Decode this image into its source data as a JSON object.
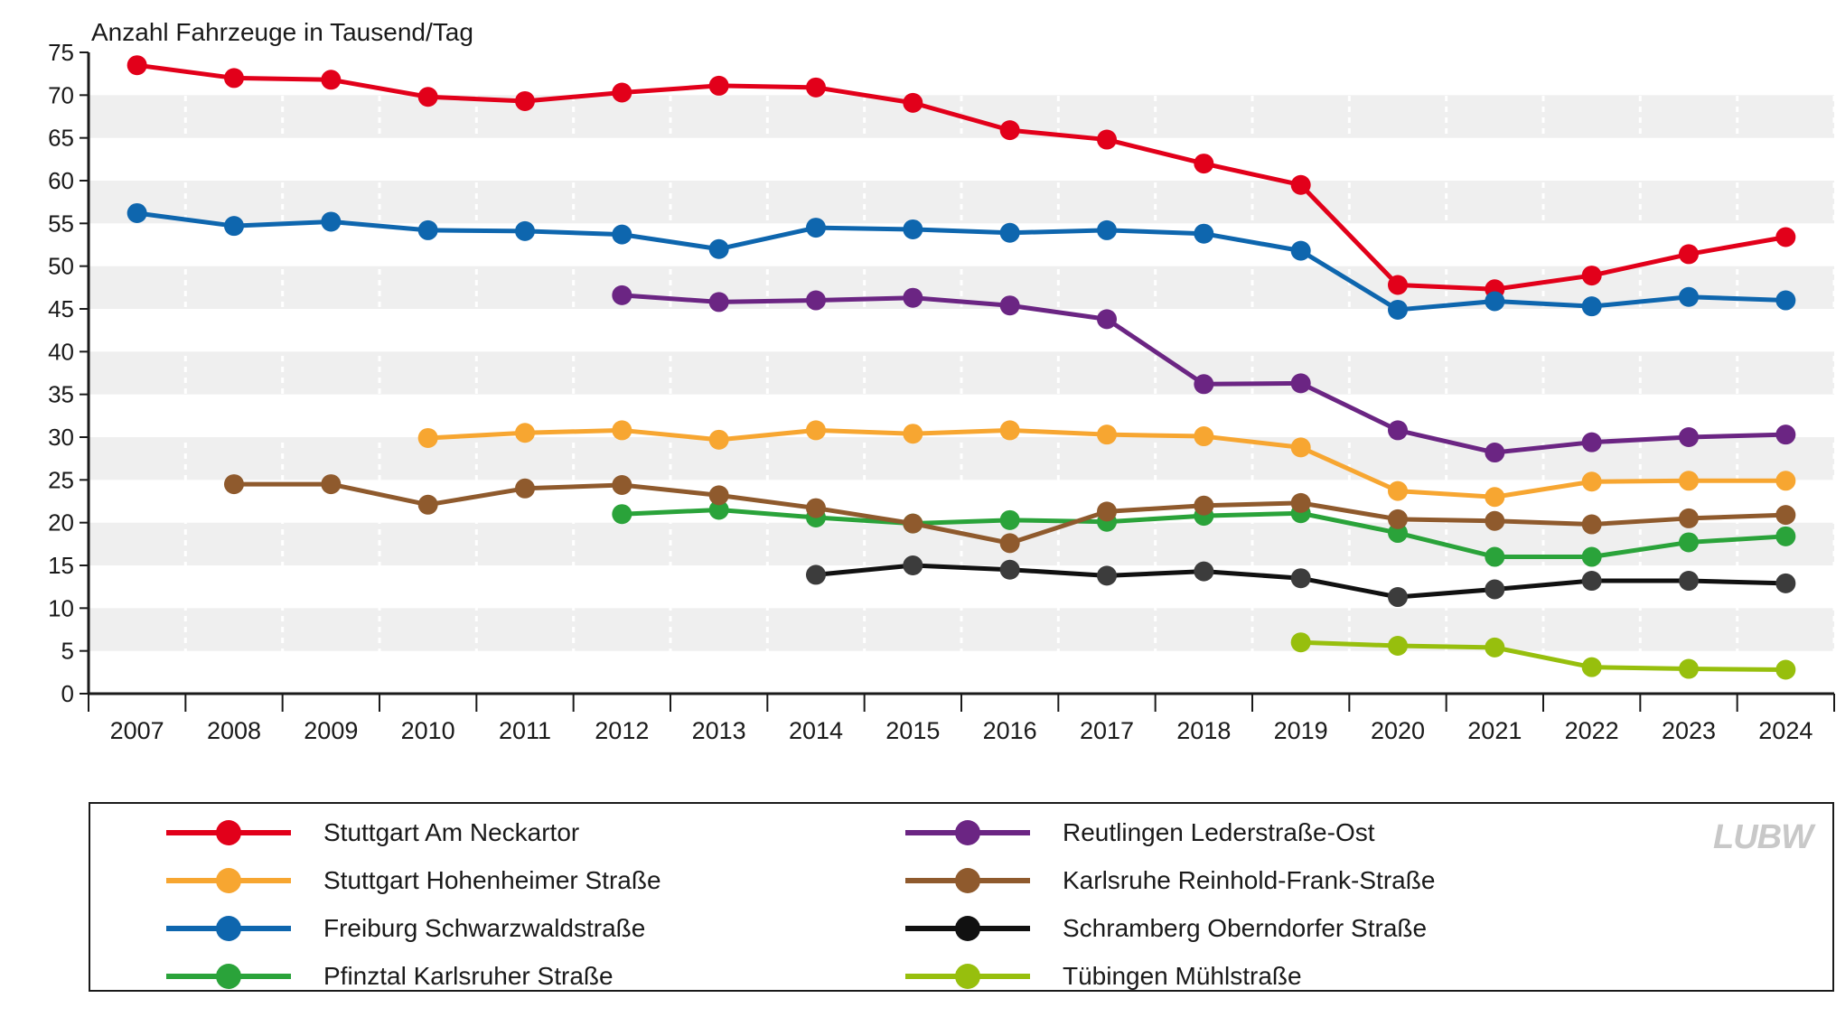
{
  "chart_data": {
    "type": "line",
    "title": "",
    "ylabel": "Anzahl Fahrzeuge in Tausend/Tag",
    "xlabel": "",
    "x": [
      "2007",
      "2008",
      "2009",
      "2010",
      "2011",
      "2012",
      "2013",
      "2014",
      "2015",
      "2016",
      "2017",
      "2018",
      "2019",
      "2020",
      "2021",
      "2022",
      "2023",
      "2024"
    ],
    "ylim": [
      0,
      75
    ],
    "yticks": [
      0,
      5,
      10,
      15,
      20,
      25,
      30,
      35,
      40,
      45,
      50,
      55,
      60,
      65,
      70,
      75
    ],
    "grid": "alternating horizontal bands, vertical dashed lines",
    "legend_position": "bottom",
    "series": [
      {
        "name": "Stuttgart Am Neckartor",
        "color": "#e2001a",
        "values": [
          73.5,
          72.0,
          71.8,
          69.8,
          69.3,
          70.3,
          71.1,
          70.9,
          69.1,
          65.9,
          64.8,
          62.0,
          59.5,
          47.8,
          47.3,
          48.9,
          51.4,
          53.4
        ]
      },
      {
        "name": "Stuttgart Hohenheimer Straße",
        "color": "#f7a631",
        "values": [
          null,
          null,
          null,
          29.9,
          30.5,
          30.8,
          29.7,
          30.8,
          30.4,
          30.8,
          30.3,
          30.1,
          28.8,
          23.7,
          23.0,
          24.8,
          24.9,
          24.9
        ]
      },
      {
        "name": "Freiburg Schwarzwaldstraße",
        "color": "#0e66ae",
        "values": [
          56.2,
          54.7,
          55.2,
          54.2,
          54.1,
          53.7,
          52.0,
          54.5,
          54.3,
          53.9,
          54.2,
          53.8,
          51.8,
          44.9,
          45.9,
          45.3,
          46.4,
          46.0
        ]
      },
      {
        "name": "Pfinztal Karlsruher Straße",
        "color": "#2aa33a",
        "values": [
          null,
          null,
          null,
          null,
          null,
          21.0,
          21.5,
          20.6,
          19.9,
          20.3,
          20.1,
          20.8,
          21.1,
          18.8,
          16.0,
          16.0,
          17.7,
          18.4
        ]
      },
      {
        "name": "Reutlingen Lederstraße-Ost",
        "color": "#6b2583",
        "values": [
          null,
          null,
          null,
          null,
          null,
          46.6,
          45.8,
          46.0,
          46.3,
          45.4,
          43.8,
          36.2,
          36.3,
          30.8,
          28.2,
          29.4,
          30.0,
          30.3
        ]
      },
      {
        "name": "Karlsruhe Reinhold-Frank-Straße",
        "color": "#8f5a2d",
        "values": [
          null,
          24.5,
          24.5,
          22.1,
          24.0,
          24.4,
          23.2,
          21.7,
          19.9,
          17.6,
          21.3,
          22.0,
          22.3,
          20.4,
          20.2,
          19.8,
          20.5,
          20.9
        ]
      },
      {
        "name": "Schramberg Oberndorfer Straße",
        "color": "#111111",
        "marker_color": "#3c3c3c",
        "values": [
          null,
          null,
          null,
          null,
          null,
          null,
          null,
          13.9,
          15.0,
          14.5,
          13.8,
          14.3,
          13.5,
          11.3,
          12.2,
          13.2,
          13.2,
          12.9
        ]
      },
      {
        "name": "Tübingen Mühlstraße",
        "color": "#97bf0d",
        "values": [
          null,
          null,
          null,
          null,
          null,
          null,
          null,
          null,
          null,
          null,
          null,
          null,
          6.0,
          5.6,
          5.4,
          3.1,
          2.9,
          2.8
        ]
      }
    ]
  },
  "legend": {
    "items": [
      {
        "label": "Stuttgart Am Neckartor",
        "color": "#e2001a"
      },
      {
        "label": "Stuttgart Hohenheimer Straße",
        "color": "#f7a631"
      },
      {
        "label": "Freiburg Schwarzwaldstraße",
        "color": "#0e66ae"
      },
      {
        "label": "Pfinztal Karlsruher Straße",
        "color": "#2aa33a"
      },
      {
        "label": "Reutlingen Lederstraße-Ost",
        "color": "#6b2583"
      },
      {
        "label": "Karlsruhe Reinhold-Frank-Straße",
        "color": "#8f5a2d"
      },
      {
        "label": "Schramberg Oberndorfer Straße",
        "color": "#111111"
      },
      {
        "label": "Tübingen Mühlstraße",
        "color": "#97bf0d"
      }
    ]
  },
  "logo": {
    "text": "LUBW"
  },
  "colors": {
    "band": "#efefef",
    "axis": "#1a1a1a"
  }
}
